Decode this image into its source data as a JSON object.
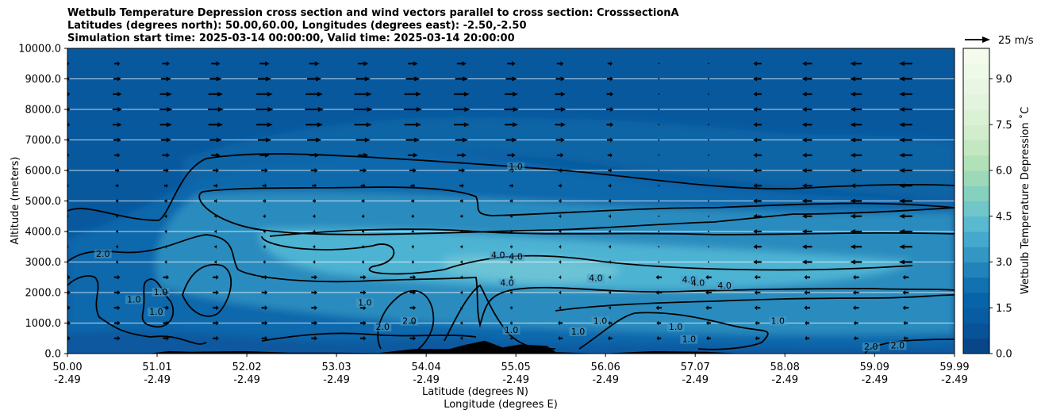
{
  "chart_data": {
    "type": "contour",
    "title_lines": [
      "Wetbulb Temperature Depression cross section and wind vectors parallel to cross section: CrosssectionA",
      "Latitudes (degrees north): 50.00,60.00, Longitudes (degrees east): -2.50,-2.50",
      "Simulation start time: 2025-03-14 00:00:00, Valid time: 2025-03-14 20:00:00"
    ],
    "ylabel": "Altitude (meters)",
    "xlabel_lines": [
      "Latitude (degrees N)",
      "Longitude (degrees E)"
    ],
    "ylim": [
      0,
      10000
    ],
    "y_ticks": [
      0,
      1000,
      2000,
      3000,
      4000,
      5000,
      6000,
      7000,
      8000,
      9000,
      10000
    ],
    "y_tick_labels": [
      "0.0",
      "1000.0",
      "2000.0",
      "3000.0",
      "4000.0",
      "5000.0",
      "6000.0",
      "7000.0",
      "8000.0",
      "9000.0",
      "10000.0"
    ],
    "xlim": [
      50.0,
      59.99
    ],
    "x_ticks": [
      {
        "lat": "50.00",
        "lon": "-2.49"
      },
      {
        "lat": "51.01",
        "lon": "-2.49"
      },
      {
        "lat": "52.02",
        "lon": "-2.49"
      },
      {
        "lat": "53.03",
        "lon": "-2.49"
      },
      {
        "lat": "54.04",
        "lon": "-2.49"
      },
      {
        "lat": "55.05",
        "lon": "-2.49"
      },
      {
        "lat": "56.06",
        "lon": "-2.49"
      },
      {
        "lat": "57.07",
        "lon": "-2.49"
      },
      {
        "lat": "58.08",
        "lon": "-2.49"
      },
      {
        "lat": "59.09",
        "lon": "-2.49"
      },
      {
        "lat": "59.99",
        "lon": "-2.49"
      }
    ],
    "colorbar": {
      "label": "Wetbulb Temperature Depression ˚C",
      "range": [
        0.0,
        10.0
      ],
      "ticks": [
        "0.0",
        "1.5",
        "3.0",
        "4.5",
        "6.0",
        "7.5",
        "9.0"
      ],
      "tick_values": [
        0.0,
        1.5,
        3.0,
        4.5,
        6.0,
        7.5,
        9.0
      ],
      "levels": 20
    },
    "quiver_key": {
      "label": "25 m/s",
      "speed": 25
    },
    "contour_levels": [
      1.0,
      2.0,
      4.0
    ],
    "contour_labels": [
      {
        "text": "1.0",
        "lat": 55.05,
        "alt": 6050
      },
      {
        "text": "4.0",
        "lat": 54.85,
        "alt": 3150
      },
      {
        "text": "4.0",
        "lat": 55.05,
        "alt": 3100
      },
      {
        "text": "4.0",
        "lat": 54.95,
        "alt": 2250
      },
      {
        "text": "4.0",
        "lat": 55.95,
        "alt": 2400
      },
      {
        "text": "4.0",
        "lat": 57.0,
        "alt": 2350
      },
      {
        "text": "4.0",
        "lat": 57.1,
        "alt": 2250
      },
      {
        "text": "4.0",
        "lat": 57.4,
        "alt": 2150
      },
      {
        "text": "2.0",
        "lat": 50.4,
        "alt": 3200
      },
      {
        "text": "1.0",
        "lat": 50.75,
        "alt": 1700
      },
      {
        "text": "1.0",
        "lat": 51.05,
        "alt": 1950
      },
      {
        "text": "1.0",
        "lat": 51.0,
        "alt": 1300
      },
      {
        "text": "1.0",
        "lat": 53.35,
        "alt": 1600
      },
      {
        "text": "2.0",
        "lat": 53.55,
        "alt": 800
      },
      {
        "text": "2.0",
        "lat": 53.85,
        "alt": 1000
      },
      {
        "text": "1.0",
        "lat": 55.0,
        "alt": 700
      },
      {
        "text": "1.0",
        "lat": 55.75,
        "alt": 650
      },
      {
        "text": "1.0",
        "lat": 56.0,
        "alt": 1000
      },
      {
        "text": "1.0",
        "lat": 56.85,
        "alt": 800
      },
      {
        "text": "1.0",
        "lat": 57.0,
        "alt": 400
      },
      {
        "text": "1.0",
        "lat": 58.0,
        "alt": 1000
      },
      {
        "text": "2.0",
        "lat": 59.05,
        "alt": 150
      },
      {
        "text": "2.0",
        "lat": 59.35,
        "alt": 200
      }
    ],
    "wind_rows_alt": [
      9500,
      9000,
      8500,
      8000,
      7500,
      7000,
      6500,
      6000,
      5500,
      5000,
      4500,
      4000,
      3500,
      3000,
      2500,
      2000,
      1500,
      1000,
      500
    ],
    "wind_cols_lat": [
      50.0,
      50.56,
      51.11,
      51.67,
      52.22,
      52.78,
      53.33,
      53.89,
      54.44,
      55.0,
      55.55,
      56.11,
      56.66,
      57.22,
      57.77,
      58.33,
      58.88,
      59.44
    ],
    "terrain_profile": [
      [
        50.0,
        0
      ],
      [
        50.9,
        0
      ],
      [
        51.15,
        80
      ],
      [
        51.4,
        60
      ],
      [
        52.0,
        80
      ],
      [
        52.5,
        30
      ],
      [
        53.0,
        30
      ],
      [
        53.5,
        20
      ],
      [
        53.9,
        150
      ],
      [
        54.3,
        150
      ],
      [
        54.5,
        300
      ],
      [
        54.7,
        420
      ],
      [
        54.9,
        200
      ],
      [
        55.1,
        300
      ],
      [
        55.4,
        250
      ],
      [
        55.5,
        50
      ],
      [
        56.0,
        0
      ],
      [
        56.6,
        80
      ],
      [
        57.2,
        60
      ],
      [
        57.6,
        0
      ],
      [
        59.99,
        0
      ]
    ]
  }
}
